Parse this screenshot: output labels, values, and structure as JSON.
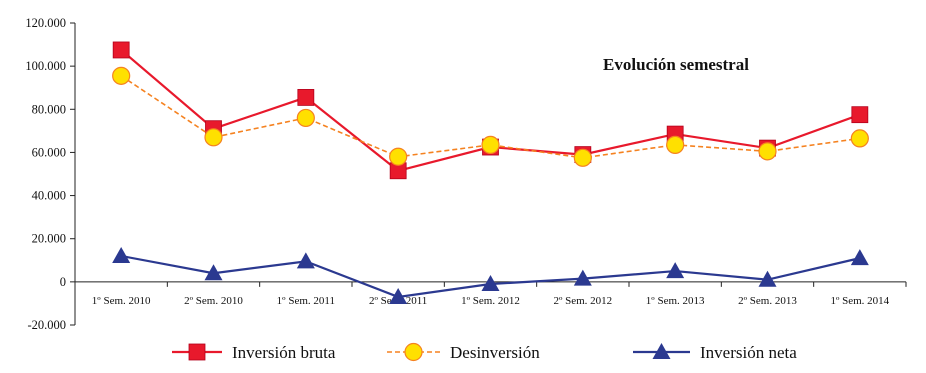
{
  "chart_data": {
    "type": "line",
    "title": "Evolución semestral",
    "categories": [
      "1º Sem. 2010",
      "2º Sem. 2010",
      "1º Sem. 2011",
      "2º Sem. 2011",
      "1º Sem. 2012",
      "2º Sem. 2012",
      "1º Sem. 2013",
      "2º Sem. 2013",
      "1º Sem. 2014"
    ],
    "y_ticks": [
      "120.000",
      "100.000",
      "80.000",
      "60.000",
      "40.000",
      "20.000",
      "0",
      "-20.000"
    ],
    "ylim": [
      -20000,
      120000
    ],
    "grid": false,
    "legend_position": "bottom",
    "series": [
      {
        "name": "Inversión bruta",
        "color": "#e8192c",
        "marker": "square",
        "line": "solid",
        "values": [
          107500,
          71000,
          85500,
          51500,
          62500,
          59000,
          68500,
          62000,
          77500
        ]
      },
      {
        "name": "Desinversión",
        "color": "#f58220",
        "marker_fill": "#ffe000",
        "marker": "circle",
        "line": "dashed",
        "values": [
          95500,
          67000,
          76000,
          58000,
          63500,
          57500,
          63500,
          60500,
          66500
        ]
      },
      {
        "name": "Inversión neta",
        "color": "#2b3990",
        "marker": "triangle",
        "line": "solid",
        "values": [
          12000,
          4000,
          9500,
          -7000,
          -1000,
          1500,
          5000,
          1000,
          11000
        ]
      }
    ]
  }
}
